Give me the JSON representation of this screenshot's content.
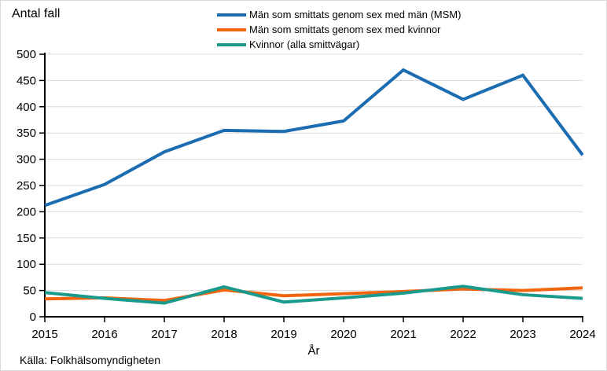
{
  "figure": {
    "source": "Källa: Folkhälsomyndigheten"
  },
  "chart_data": {
    "type": "line",
    "title": "",
    "ylabel": "Antal fall",
    "xlabel": "År",
    "x": [
      2015,
      2016,
      2017,
      2018,
      2019,
      2020,
      2021,
      2022,
      2023,
      2024
    ],
    "ylim": [
      0,
      500
    ],
    "ytick_step": 50,
    "grid": true,
    "grid_color": "#d9d9d9",
    "axis_color": "#000000",
    "legend_position": "top",
    "series": [
      {
        "name": "Män som smittats genom sex med män (MSM)",
        "color": "#1b6cb1",
        "values": [
          212,
          252,
          314,
          355,
          353,
          373,
          470,
          414,
          460,
          308
        ]
      },
      {
        "name": "Män som smittats genom sex med kvinnor",
        "color": "#f2650f",
        "values": [
          34,
          36,
          31,
          51,
          40,
          44,
          48,
          53,
          50,
          55
        ]
      },
      {
        "name": "Kvinnor (alla smittvägar)",
        "color": "#1a9a8c",
        "values": [
          46,
          35,
          26,
          57,
          28,
          36,
          45,
          58,
          42,
          35
        ]
      }
    ]
  }
}
